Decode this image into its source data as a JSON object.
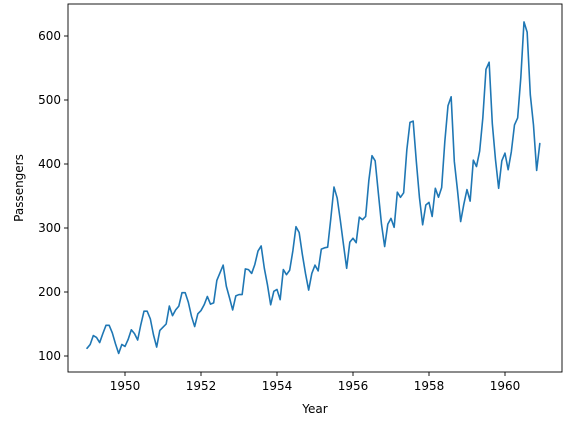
{
  "chart_data": {
    "type": "line",
    "title": "",
    "xlabel": "Year",
    "ylabel": "Passengers",
    "xlim": [
      1948.5,
      1961.5
    ],
    "ylim": [
      75,
      650
    ],
    "xticks": [
      1950,
      1952,
      1954,
      1956,
      1958,
      1960
    ],
    "yticks": [
      100,
      200,
      300,
      400,
      500,
      600
    ],
    "grid": false,
    "legend": "none",
    "line_color": "#1f77b4",
    "series": [
      {
        "x_start": 1949.0,
        "x_step": 0.08333,
        "values": [
          112,
          118,
          132,
          129,
          121,
          135,
          148,
          148,
          136,
          119,
          104,
          118,
          115,
          126,
          141,
          135,
          125,
          149,
          170,
          170,
          158,
          133,
          114,
          140,
          145,
          150,
          178,
          163,
          172,
          178,
          199,
          199,
          184,
          162,
          146,
          166,
          171,
          180,
          193,
          181,
          183,
          218,
          230,
          242,
          209,
          191,
          172,
          194,
          196,
          196,
          236,
          235,
          229,
          243,
          264,
          272,
          237,
          211,
          180,
          201,
          204,
          188,
          235,
          227,
          234,
          264,
          302,
          293,
          259,
          229,
          203,
          229,
          242,
          233,
          267,
          269,
          270,
          315,
          364,
          347,
          312,
          274,
          237,
          278,
          284,
          277,
          317,
          313,
          318,
          374,
          413,
          405,
          355,
          306,
          271,
          306,
          315,
          301,
          356,
          348,
          355,
          422,
          465,
          467,
          404,
          347,
          305,
          336,
          340,
          318,
          362,
          348,
          363,
          435,
          491,
          505,
          404,
          359,
          310,
          337,
          360,
          342,
          406,
          396,
          420,
          472,
          548,
          559,
          463,
          407,
          362,
          405,
          417,
          391,
          419,
          461,
          472,
          535,
          622,
          606,
          508,
          461,
          390,
          432
        ]
      }
    ]
  }
}
